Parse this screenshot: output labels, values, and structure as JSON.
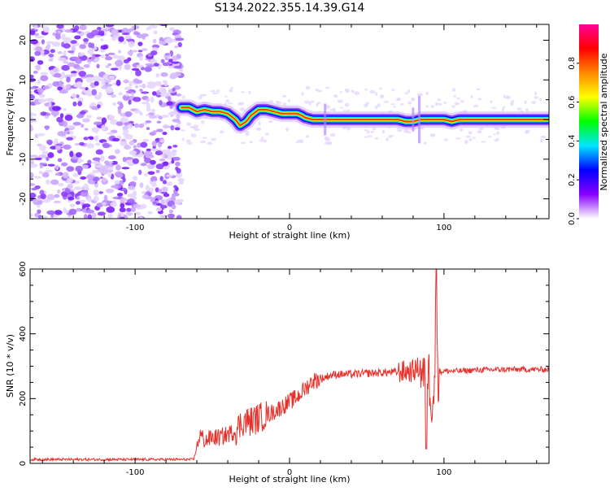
{
  "title": "S134.2022.355.14.39.G14",
  "chart_data": [
    {
      "type": "heatmap",
      "xlabel": "Height of straight line (km)",
      "ylabel": "Frequency (Hz)",
      "xlim": [
        -168,
        168
      ],
      "ylim": [
        -25,
        24
      ],
      "xticks": [
        -100,
        0,
        100
      ],
      "yticks": [
        -20,
        -10,
        0,
        10,
        20
      ],
      "noise_region": {
        "x_start": -168,
        "x_end": -70
      },
      "ridge": {
        "x": [
          -70,
          -65,
          -60,
          -55,
          -50,
          -45,
          -40,
          -35,
          -32,
          -28,
          -25,
          -20,
          -15,
          -10,
          -5,
          0,
          5,
          8,
          10,
          15,
          20,
          30,
          40,
          60,
          70,
          75,
          80,
          85,
          90,
          95,
          100,
          105,
          110,
          130,
          150,
          168
        ],
        "y": [
          3,
          3,
          2,
          2.5,
          2,
          2,
          1.5,
          0,
          -1.5,
          -0.5,
          1,
          2.5,
          2.5,
          2,
          1.5,
          1.5,
          1.5,
          1,
          0.5,
          0,
          0,
          0,
          0,
          0,
          0,
          -0.5,
          -0.5,
          0,
          0,
          0,
          0,
          -0.5,
          0,
          0,
          0,
          0
        ]
      },
      "colorbar": {
        "label": "Normalized spectral amplitude",
        "range": [
          0,
          1
        ],
        "ticks": [
          0.0,
          0.2,
          0.4,
          0.6,
          0.8
        ],
        "tick_labels": [
          "0.0",
          "0.2",
          "0.4",
          "0.6",
          "0.8"
        ],
        "colors": [
          "#ffffff",
          "#8800ff",
          "#0000ff",
          "#00e5ff",
          "#00ff00",
          "#ffff00",
          "#ff8800",
          "#ff0000",
          "#ff0099"
        ]
      }
    },
    {
      "type": "line",
      "xlabel": "Height of straight line (km)",
      "ylabel": "SNR (10 * v/v)",
      "xlim": [
        -168,
        168
      ],
      "ylim": [
        0,
        600
      ],
      "xticks": [
        -100,
        0,
        100
      ],
      "yticks": [
        0,
        200,
        400,
        600
      ],
      "series": [
        {
          "color": "#e8302a",
          "x": [
            -168,
            -140,
            -110,
            -80,
            -62,
            -58,
            -55,
            -50,
            -45,
            -40,
            -35,
            -30,
            -25,
            -20,
            -15,
            -10,
            -5,
            0,
            5,
            10,
            15,
            20,
            25,
            30,
            40,
            50,
            60,
            70,
            80,
            85,
            88,
            90,
            92,
            94,
            95,
            96,
            100,
            110,
            120,
            140,
            160,
            168
          ],
          "y": [
            12,
            12,
            12,
            12,
            12,
            90,
            70,
            80,
            80,
            90,
            100,
            130,
            130,
            140,
            150,
            160,
            175,
            190,
            205,
            230,
            255,
            260,
            270,
            275,
            275,
            278,
            280,
            282,
            285,
            300,
            250,
            280,
            200,
            240,
            600,
            280,
            285,
            285,
            288,
            290,
            290,
            290
          ]
        }
      ]
    }
  ]
}
